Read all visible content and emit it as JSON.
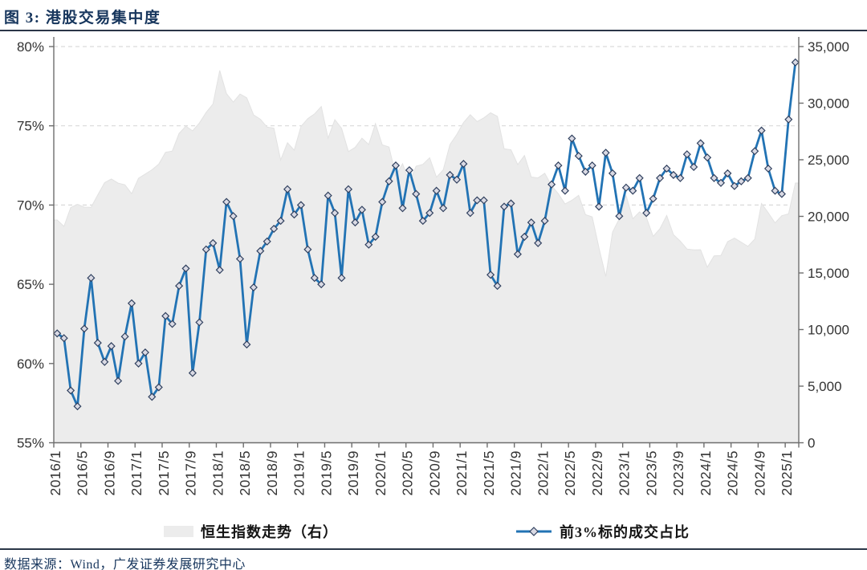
{
  "header": {
    "title": "图 3: 港股交易集中度"
  },
  "legend": {
    "area_label": "恒生指数走势（右）",
    "line_label": "前3%标的成交占比"
  },
  "footer": {
    "source": "数据来源：Wind，广发证券发展研究中心"
  },
  "colors": {
    "line": "#2273B4",
    "marker_fill": "#DADAE4",
    "marker_stroke": "#31415F",
    "area_fill": "#ECECEC",
    "area_edge": "#E2E2E2",
    "grid": "#D9D9D9",
    "axis": "#6E6E6E",
    "tick_text": "#333333",
    "navy": "#17365D"
  },
  "chart_data": {
    "type": "combo",
    "x_start": "2016/1",
    "x_freq": "monthly",
    "x_tick_labels": [
      "2016/1",
      "2016/5",
      "2016/9",
      "2017/1",
      "2017/5",
      "2017/9",
      "2018/1",
      "2018/5",
      "2018/9",
      "2019/1",
      "2019/5",
      "2019/9",
      "2020/1",
      "2020/5",
      "2020/9",
      "2021/1",
      "2021/5",
      "2021/9",
      "2022/1",
      "2022/5",
      "2022/9",
      "2023/1",
      "2023/5",
      "2023/9",
      "2024/1",
      "2024/5",
      "2024/9",
      "2025/1"
    ],
    "left_axis": {
      "min": 55,
      "max": 80,
      "step": 5,
      "unit": "%",
      "tick_labels": [
        "80%",
        "75%",
        "70%",
        "65%",
        "60%",
        "55%"
      ]
    },
    "right_axis": {
      "min": 0,
      "max": 35000,
      "step": 5000,
      "tick_labels": [
        "35,000",
        "30,000",
        "25,000",
        "20,000",
        "15,000",
        "10,000",
        "5,000",
        "0"
      ]
    },
    "grid": "horizontal-dashed",
    "legend_position": "bottom",
    "series": [
      {
        "name": "恒生指数走势（右）",
        "type": "area",
        "axis": "right",
        "values": [
          19683,
          19112,
          20777,
          21067,
          20815,
          20794,
          21891,
          22977,
          23297,
          22935,
          22790,
          22001,
          23361,
          23741,
          24112,
          24615,
          25661,
          25765,
          27324,
          27970,
          27554,
          28246,
          29177,
          29919,
          32887,
          30845,
          30093,
          30808,
          30469,
          28955,
          28583,
          27889,
          27789,
          24980,
          26507,
          25846,
          27942,
          28633,
          29051,
          29699,
          26901,
          28543,
          27778,
          25725,
          26092,
          26907,
          26346,
          28190,
          26313,
          26130,
          23603,
          24644,
          22961,
          24427,
          24595,
          25177,
          23459,
          24107,
          26341,
          27231,
          28284,
          28980,
          28378,
          28705,
          29152,
          28828,
          25961,
          25879,
          24576,
          25377,
          23476,
          23398,
          23802,
          22713,
          21997,
          21089,
          21415,
          21860,
          20157,
          19954,
          17223,
          14687,
          18597,
          19781,
          21842,
          19786,
          20400,
          19895,
          18234,
          18916,
          20079,
          18382,
          17810,
          17112,
          17043,
          17047,
          15510,
          16511,
          16541,
          17763,
          18080,
          17719,
          17345,
          17989,
          21134,
          20317,
          19424,
          20060,
          20225,
          22941
        ]
      },
      {
        "name": "前3%标的成交占比",
        "type": "line",
        "axis": "left",
        "marker": "diamond",
        "values": [
          61.9,
          61.6,
          58.3,
          57.3,
          62.2,
          65.4,
          61.3,
          60.1,
          61.1,
          58.9,
          61.7,
          63.8,
          60.0,
          60.7,
          57.9,
          58.5,
          63.0,
          62.5,
          64.9,
          66.0,
          59.4,
          62.6,
          67.2,
          67.6,
          65.9,
          70.2,
          69.3,
          66.6,
          61.2,
          64.8,
          67.1,
          67.7,
          68.5,
          69.0,
          71.0,
          69.4,
          70.0,
          67.2,
          65.4,
          65.0,
          70.6,
          69.5,
          65.4,
          71.0,
          68.9,
          69.7,
          67.5,
          68.0,
          70.2,
          71.5,
          72.5,
          69.8,
          72.2,
          70.7,
          69.0,
          69.5,
          70.9,
          69.8,
          71.9,
          71.6,
          72.6,
          69.5,
          70.3,
          70.3,
          65.6,
          64.9,
          69.9,
          70.1,
          66.9,
          68.0,
          68.9,
          67.6,
          69.0,
          71.3,
          72.5,
          70.9,
          74.2,
          73.1,
          72.1,
          72.5,
          69.9,
          73.3,
          72.0,
          69.3,
          71.1,
          70.9,
          71.7,
          69.5,
          70.4,
          71.7,
          72.3,
          71.9,
          71.7,
          73.2,
          72.4,
          73.9,
          73.0,
          71.7,
          71.4,
          72.0,
          71.2,
          71.5,
          71.7,
          73.4,
          74.7,
          72.3,
          70.9,
          70.7,
          75.4,
          79.0
        ]
      }
    ]
  }
}
